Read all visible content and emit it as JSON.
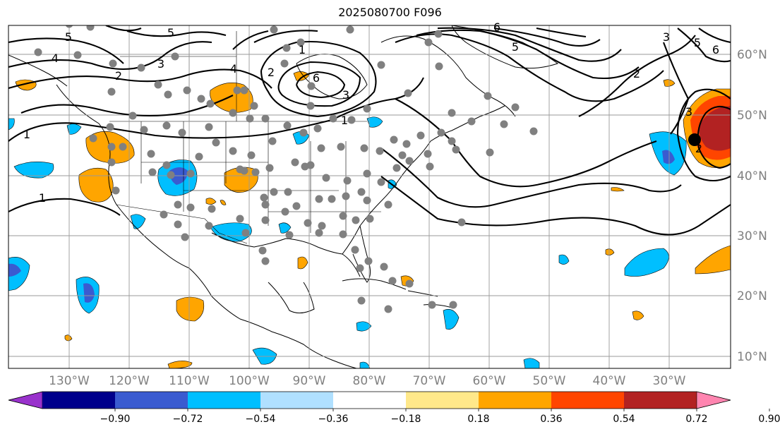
{
  "title": "2025080700 F096",
  "map": {
    "lon_labels": [
      "130°W",
      "120°W",
      "110°W",
      "100°W",
      "90°W",
      "80°W",
      "70°W",
      "60°W",
      "50°W",
      "40°W",
      "30°W"
    ],
    "lat_labels": [
      "60°N",
      "50°N",
      "40°N",
      "30°N",
      "20°N",
      "10°N"
    ],
    "contour_labels": [
      "5",
      "4",
      "3",
      "2",
      "1",
      "5",
      "6",
      "3",
      "2",
      "1",
      "4",
      "6",
      "5",
      "3",
      "2",
      "3",
      "5",
      "6",
      "2",
      "1",
      "1"
    ],
    "fill_colors": {
      "neg_light": "#b0e0ff",
      "neg_mid": "#00bfff",
      "neg_strong": "#3a5bd0",
      "pos_light": "#ffe88a",
      "pos_mid": "#ffa500",
      "pos_strong": "#ff4500",
      "pos_dark": "#b22222"
    },
    "station_color": "#808080",
    "storm_marker_color": "#000000"
  },
  "colorbar": {
    "colors": [
      "#9932cc",
      "#00008b",
      "#3a5bd0",
      "#00bfff",
      "#b0e0ff",
      "#ffffff",
      "#ffe88a",
      "#ffa500",
      "#ff4500",
      "#b22222",
      "#ff85b0"
    ],
    "tick_labels": [
      "−0.90",
      "−0.72",
      "−0.54",
      "−0.36",
      "−0.18",
      "0.18",
      "0.36",
      "0.54",
      "0.72",
      "0.90"
    ]
  }
}
